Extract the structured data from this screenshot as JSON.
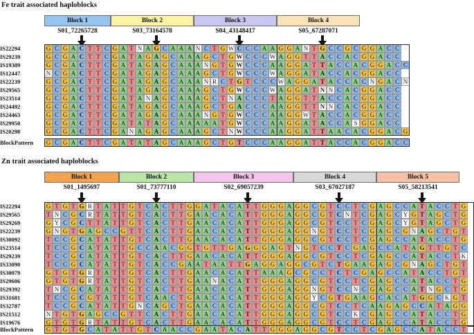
{
  "colors": {
    "A": "#8fd18b",
    "C": "#8fb6e8",
    "G": "#f5c242",
    "T": "#f08c8c",
    "other": "#ffffff"
  },
  "fe_section": {
    "title": "Fe trait associated haploblocks",
    "blocks": [
      {
        "label": "Block 1",
        "color": "#94c5f0",
        "snp": "S01_72265728",
        "span": [
          0,
          8
        ]
      },
      {
        "label": "Block 2",
        "color": "#fbf5a3",
        "snp": "S03_73164578",
        "span": [
          8,
          10
        ]
      },
      {
        "label": "Block 3",
        "color": "#c9c7f2",
        "snp": "S04_43148417",
        "span": [
          18,
          10
        ]
      },
      {
        "label": "Block 4",
        "color": "#fde3b8",
        "snp": "S05_67287071",
        "span": [
          28,
          10
        ]
      }
    ],
    "sequences": [
      {
        "id": "IS22294",
        "seq": "GCGACTTCGATNAGCAAANCTGWCCCAAGGANTGCCGCGGACC"
      },
      {
        "id": "IS29239",
        "seq": "GCGACTTCGATAGAGCAAAGCTGWCCCWAGGTTACCACGGACC"
      },
      {
        "id": "IS19389",
        "seq": "GCGACTTCGATAGAGCAAANGTGWCCCAAGGATTACCACGGACC"
      },
      {
        "id": "IS12447",
        "seq": "NCGACTTCGATAGAGCAAAGCTGWCCCWAGGATACCACGGACC"
      },
      {
        "id": "IS22239",
        "seq": "GCGACTTCGATAGAGCAAANRCTGTCCCWAGGATACCACNGACN"
      },
      {
        "id": "IS29565",
        "seq": "GCGACTTCGATAGAGCAAAGCTGWCCCWAGGATNNCACGGACC"
      },
      {
        "id": "IS23514",
        "seq": "GCGACTTCGATANAGCAAAGCTNACCCTAGGTTACCACGGACC"
      },
      {
        "id": "IS24492",
        "seq": "GCGACTTCGATAGAGCAAAGCTGACCCAAGGTTNNCACGGACC"
      },
      {
        "id": "IS24463",
        "seq": "GCGACTTCGATAGAGCAAANGTGWCCCAAGGWTACCACGGACC"
      },
      {
        "id": "IS29950",
        "seq": "GCGACTTCGATATAGCAAAAATGWCCCAAGGATACCASGGACC"
      },
      {
        "id": "IS20298",
        "seq": "GCGACTTCGANAGAGCAAAGCTNWCCCAAGGATTAACACGGACG"
      }
    ],
    "pattern_label": "BlockPattern",
    "pattern": "GCGACTTCGATATAGCAAAGCTGTCCCAAGGATTACCACGGACC"
  },
  "zn_section": {
    "title": "Zn trait associated haploblocks",
    "blocks": [
      {
        "label": "Block 1",
        "color": "#f6a24e",
        "snp": "S01_1495697",
        "span": [
          0,
          9
        ]
      },
      {
        "label": "Block 2",
        "color": "#b8e6a6",
        "snp": "S01_73777110",
        "span": [
          9,
          9
        ]
      },
      {
        "label": "Block 3",
        "color": "#f7c6ef",
        "snp": "S02_69057239",
        "span": [
          18,
          12
        ]
      },
      {
        "label": "Block 4",
        "color": "#d9d9d9",
        "snp": "S03_67027187",
        "span": [
          30,
          10
        ]
      },
      {
        "label": "Block 5",
        "color": "#f9c1a5",
        "snp": "S05_58213541",
        "span": [
          40,
          10
        ]
      }
    ],
    "sequences": [
      {
        "id": "IS22294",
        "seq": "GTGTGRTATTGTCACTTGGATACATTGGGAGGCGTCCTCGAGCCATACCTGYCYC"
      },
      {
        "id": "IS29565",
        "seq": "TNCGCRTATTGTCACTTGAACACATTGGGAGGCGTCNTCGAGCYGTAGCTGTNNC"
      },
      {
        "id": "IS29269",
        "seq": "GYCGCTTATTGTCACTTGAACACATTGGGAGGCGTCCTCGAGCYGTAGCTGTCTC"
      },
      {
        "id": "IS22239",
        "seq": "GNGTGAGCCGTTCACTTGAACACATTGGGAGGNGTCCTCGAGCGNAGCTGTCTC"
      },
      {
        "id": "IS30092",
        "seq": "TCCGCATATTGTCACTTGAACACATTGGGAGGCGTCCTCGAGCCATACCTGTCTC"
      },
      {
        "id": "IS23514",
        "seq": "TCCGCATATTGCCAACGGTGTTGAGGGAGTNGTCCTCGAGCCATAGTTGTCTC"
      },
      {
        "id": "IS29239",
        "seq": "TCCGCATATTGTCACTTGAACACATTGGGAGGCGTCCTCGAGCCATACCTKTYC"
      },
      {
        "id": "IS33090",
        "seq": "TCCGCATATTGTCACCGAATAATTGAGGAGGCGTCTGAAGAGCGNAGCTGTCTC"
      },
      {
        "id": "IS30079",
        "seq": "GTGTGRTATTGTCACTTGAACACATTAAAGCGCCTCTCGAGCCATACCTGTCTC"
      },
      {
        "id": "IS29606",
        "seq": "GTGTGRTATTGTCACTTGAANACATTGGGAGGCGTCCTCGAGCCATACCTGTCTC"
      },
      {
        "id": "IS29392",
        "seq": "TNCGCATATTGTCACTTGAACACATTGGGAGGNGTCCNCGAGCCATNGCTGTCTC"
      },
      {
        "id": "IS31681",
        "seq": "TCCGCGTATTGTCAACTGAACACATTGGGAGGYCGTGAAGCACATGGCKGTYT"
      },
      {
        "id": "IS32787",
        "seq": "TCCGCATATTGNCAGCTGAACACATTGGGAGGCGTCCTCAAGAGCCATAGGGTTTM"
      },
      {
        "id": "IS21512",
        "seq": "NTGTGAGCCGTTCACTTGAACACATTGGGAGGCGTCCKCGAGCCATACCTGTCTC"
      },
      {
        "id": "IS19676",
        "seq": "GTGTGRTATTGTCACTTGAACACATTGGGAGGCGTCCTCGAGCCATACCTGTCTC"
      }
    ],
    "pattern_label": "BlockPattern",
    "pattern": "GTGTGCATATTGTCAACCGAATACATTGGGAGGCGTCCTCGAGCCATACCTGTCTC"
  }
}
